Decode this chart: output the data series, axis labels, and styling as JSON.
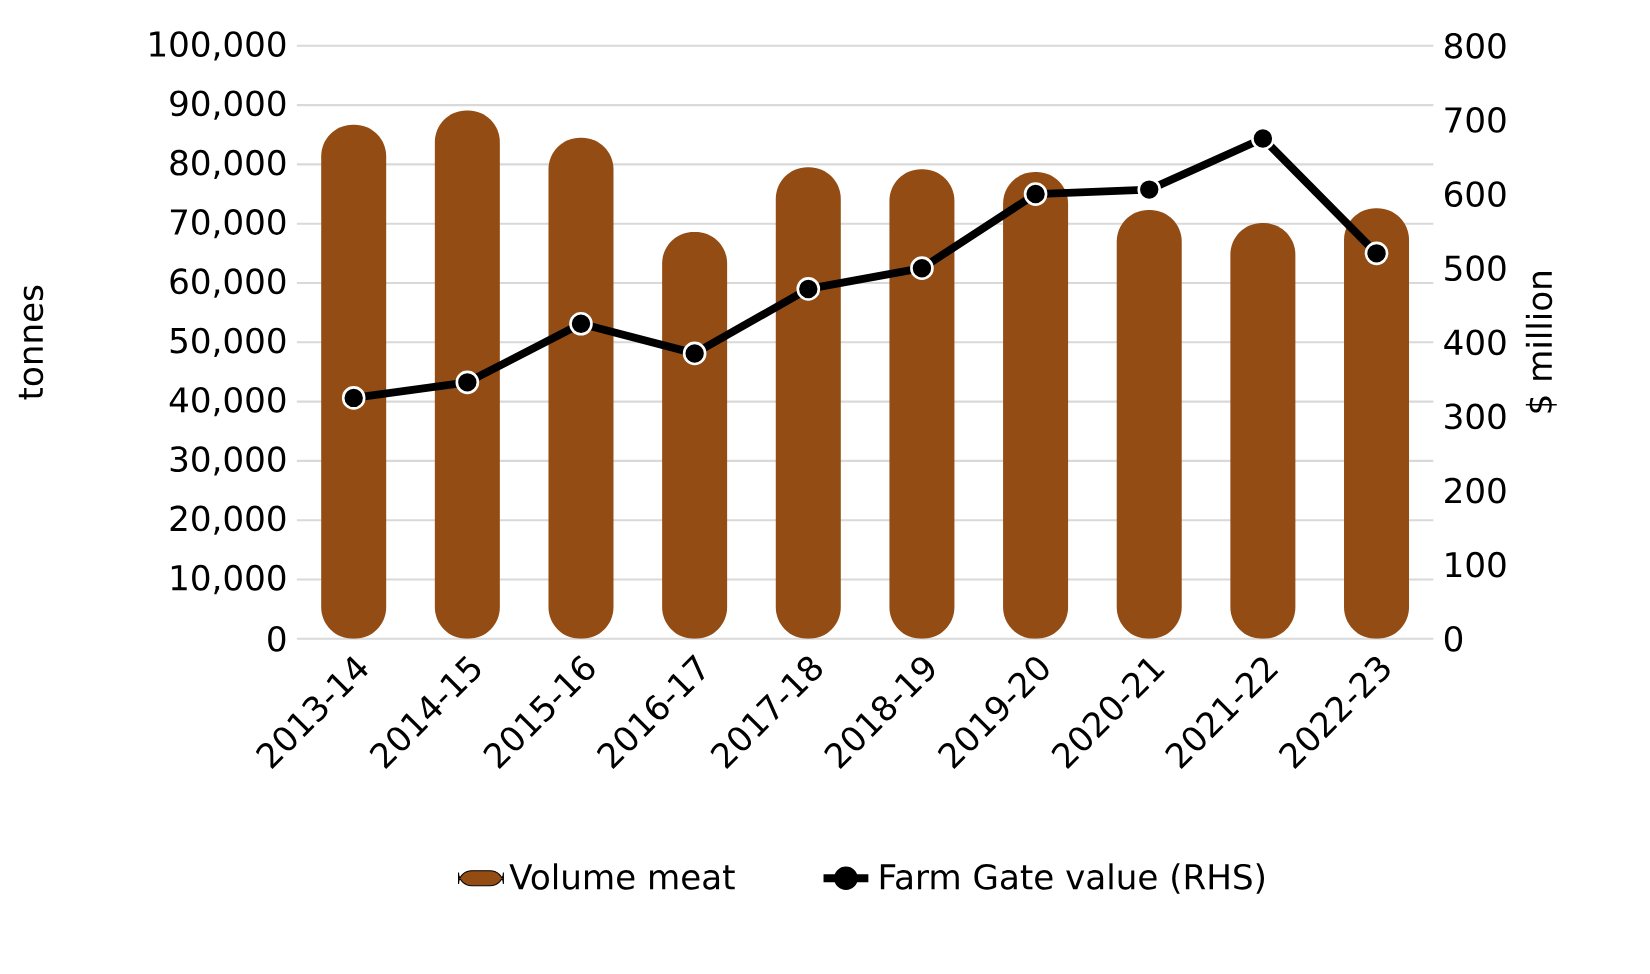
{
  "chart_data": {
    "type": "bar",
    "ylabel": "tonnes",
    "y2label": "$ million",
    "categories": [
      "2013-14",
      "2014-15",
      "2015-16",
      "2016-17",
      "2017-18",
      "2018-19",
      "2019-20",
      "2020-21",
      "2021-22",
      "2022-23"
    ],
    "series": [
      {
        "name": "Volume meat",
        "color": "#934c13",
        "values": [
          86700,
          89100,
          84500,
          68600,
          79500,
          79200,
          78700,
          72300,
          70100,
          72600
        ]
      },
      {
        "name": "Farm Gate value (RHS)",
        "type": "line",
        "axis": "y2",
        "color": "#000000",
        "marker": "circle",
        "values": [
          325,
          346,
          425,
          385,
          472,
          500,
          600,
          606,
          675,
          520
        ]
      }
    ],
    "ylim": [
      0,
      100000
    ],
    "yticks": [
      {
        "value": 0,
        "label": "0"
      },
      {
        "value": 10000,
        "label": "10,000"
      },
      {
        "value": 20000,
        "label": "20,000"
      },
      {
        "value": 30000,
        "label": "30,000"
      },
      {
        "value": 40000,
        "label": "40,000"
      },
      {
        "value": 50000,
        "label": "50,000"
      },
      {
        "value": 60000,
        "label": "60,000"
      },
      {
        "value": 70000,
        "label": "70,000"
      },
      {
        "value": 80000,
        "label": "80,000"
      },
      {
        "value": 90000,
        "label": "90,000"
      },
      {
        "value": 100000,
        "label": "100,000"
      }
    ],
    "y2lim": [
      0,
      800
    ],
    "y2ticks": [
      0,
      100,
      200,
      300,
      400,
      500,
      600,
      700,
      800
    ],
    "grid": "y",
    "legend": "bottom"
  }
}
